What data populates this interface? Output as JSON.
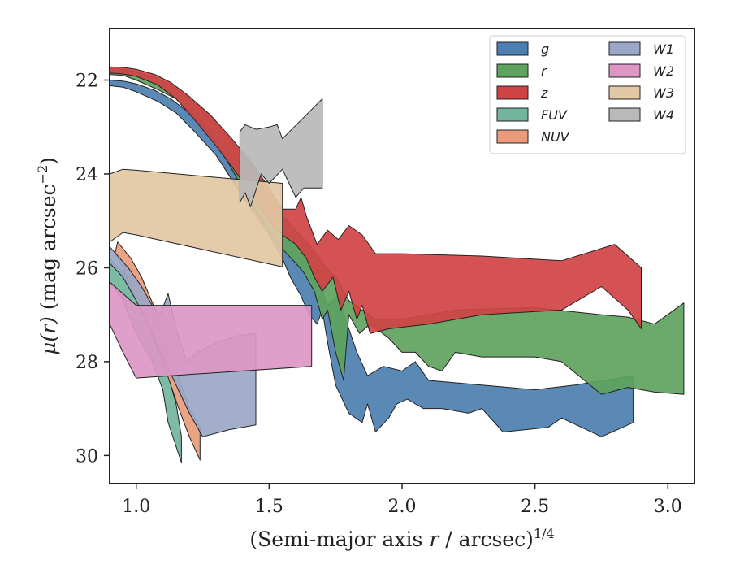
{
  "chart_data": {
    "type": "area",
    "xlabel": "(Semi-major axis r / arcsec)^1/4",
    "xlabel_parts": {
      "prefix": "(Semi-major axis ",
      "var": "r",
      "mid": " / arcsec)",
      "sup": "1/4"
    },
    "ylabel": "μ(r) (mag arcsec^−2)",
    "ylabel_parts": {
      "var": "μ(r)",
      "mid": " (mag arcsec",
      "sup": "−2",
      "end": ")"
    },
    "xlim": [
      0.9,
      3.1
    ],
    "ylim": [
      30.6,
      20.9
    ],
    "y_inverted": true,
    "xticks": [
      1.0,
      1.5,
      2.0,
      2.5,
      3.0
    ],
    "xtick_labels": [
      "1.0",
      "1.5",
      "2.0",
      "2.5",
      "3.0"
    ],
    "yticks": [
      22,
      24,
      26,
      28,
      30
    ],
    "ytick_labels": [
      "22",
      "24",
      "26",
      "28",
      "30"
    ],
    "grid": false,
    "legend_position": "top-right",
    "legend_columns": 2,
    "series": [
      {
        "name": "g",
        "color": "#4c7fb0",
        "polygon": [
          [
            0.9,
            22.0
          ],
          [
            0.95,
            22.02
          ],
          [
            1.0,
            22.08
          ],
          [
            1.07,
            22.22
          ],
          [
            1.13,
            22.4
          ],
          [
            1.2,
            22.7
          ],
          [
            1.28,
            23.1
          ],
          [
            1.36,
            23.6
          ],
          [
            1.44,
            24.1
          ],
          [
            1.5,
            24.6
          ],
          [
            1.55,
            25.1
          ],
          [
            1.6,
            25.5
          ],
          [
            1.64,
            25.8
          ],
          [
            1.68,
            26.2
          ],
          [
            1.72,
            26.8
          ],
          [
            1.76,
            26.6
          ],
          [
            1.8,
            27.3
          ],
          [
            1.83,
            27.8
          ],
          [
            1.87,
            28.3
          ],
          [
            1.93,
            28.1
          ],
          [
            2.0,
            28.2
          ],
          [
            2.05,
            28.0
          ],
          [
            2.1,
            28.4
          ],
          [
            2.3,
            28.5
          ],
          [
            2.5,
            28.6
          ],
          [
            2.65,
            28.5
          ],
          [
            2.87,
            28.3
          ],
          [
            2.87,
            29.3
          ],
          [
            2.75,
            29.6
          ],
          [
            2.6,
            29.2
          ],
          [
            2.55,
            29.4
          ],
          [
            2.38,
            29.5
          ],
          [
            2.3,
            29.0
          ],
          [
            2.25,
            29.1
          ],
          [
            2.15,
            29.0
          ],
          [
            2.08,
            29.0
          ],
          [
            2.02,
            28.8
          ],
          [
            1.98,
            28.9
          ],
          [
            1.95,
            29.2
          ],
          [
            1.9,
            29.5
          ],
          [
            1.87,
            28.9
          ],
          [
            1.85,
            29.3
          ],
          [
            1.8,
            29.1
          ],
          [
            1.75,
            28.5
          ],
          [
            1.72,
            27.6
          ],
          [
            1.7,
            26.9
          ],
          [
            1.68,
            27.2
          ],
          [
            1.65,
            27.0
          ],
          [
            1.62,
            26.6
          ],
          [
            1.58,
            26.2
          ],
          [
            1.55,
            25.8
          ],
          [
            1.5,
            25.3
          ],
          [
            1.44,
            24.8
          ],
          [
            1.38,
            24.3
          ],
          [
            1.3,
            23.6
          ],
          [
            1.22,
            23.1
          ],
          [
            1.15,
            22.7
          ],
          [
            1.08,
            22.45
          ],
          [
            1.0,
            22.25
          ],
          [
            0.95,
            22.15
          ],
          [
            0.9,
            22.12
          ]
        ]
      },
      {
        "name": "r",
        "color": "#5ea35e",
        "polygon": [
          [
            0.9,
            21.75
          ],
          [
            0.95,
            21.77
          ],
          [
            1.0,
            21.82
          ],
          [
            1.07,
            21.95
          ],
          [
            1.13,
            22.1
          ],
          [
            1.2,
            22.4
          ],
          [
            1.28,
            22.8
          ],
          [
            1.36,
            23.3
          ],
          [
            1.44,
            23.9
          ],
          [
            1.5,
            24.4
          ],
          [
            1.55,
            24.9
          ],
          [
            1.6,
            25.2
          ],
          [
            1.65,
            25.5
          ],
          [
            1.7,
            25.9
          ],
          [
            1.75,
            26.2
          ],
          [
            1.8,
            26.7
          ],
          [
            1.85,
            26.9
          ],
          [
            1.9,
            27.1
          ],
          [
            2.0,
            27.1
          ],
          [
            2.2,
            26.9
          ],
          [
            2.5,
            26.85
          ],
          [
            2.75,
            27.0
          ],
          [
            2.85,
            27.05
          ],
          [
            2.95,
            27.2
          ],
          [
            3.06,
            26.75
          ],
          [
            3.06,
            28.7
          ],
          [
            2.95,
            28.65
          ],
          [
            2.85,
            28.55
          ],
          [
            2.75,
            28.7
          ],
          [
            2.6,
            28.0
          ],
          [
            2.5,
            27.9
          ],
          [
            2.3,
            27.9
          ],
          [
            2.2,
            27.8
          ],
          [
            2.15,
            28.2
          ],
          [
            2.1,
            28.1
          ],
          [
            2.05,
            27.8
          ],
          [
            2.0,
            27.8
          ],
          [
            1.95,
            27.5
          ],
          [
            1.88,
            27.2
          ],
          [
            1.84,
            27.4
          ],
          [
            1.8,
            27.0
          ],
          [
            1.78,
            28.4
          ],
          [
            1.75,
            27.8
          ],
          [
            1.72,
            26.9
          ],
          [
            1.7,
            27.1
          ],
          [
            1.67,
            26.5
          ],
          [
            1.63,
            26.1
          ],
          [
            1.6,
            25.9
          ],
          [
            1.55,
            25.6
          ],
          [
            1.5,
            25.2
          ],
          [
            1.44,
            24.7
          ],
          [
            1.38,
            24.1
          ],
          [
            1.3,
            23.3
          ],
          [
            1.22,
            22.8
          ],
          [
            1.15,
            22.4
          ],
          [
            1.08,
            22.2
          ],
          [
            1.0,
            22.0
          ],
          [
            0.95,
            21.9
          ],
          [
            0.9,
            21.88
          ]
        ]
      },
      {
        "name": "z",
        "color": "#d04345",
        "polygon": [
          [
            0.9,
            21.72
          ],
          [
            0.95,
            21.73
          ],
          [
            1.0,
            21.77
          ],
          [
            1.07,
            21.88
          ],
          [
            1.13,
            22.05
          ],
          [
            1.2,
            22.35
          ],
          [
            1.28,
            22.75
          ],
          [
            1.36,
            23.25
          ],
          [
            1.44,
            23.8
          ],
          [
            1.5,
            24.3
          ],
          [
            1.55,
            24.75
          ],
          [
            1.6,
            24.75
          ],
          [
            1.62,
            24.5
          ],
          [
            1.64,
            24.9
          ],
          [
            1.68,
            25.5
          ],
          [
            1.72,
            25.2
          ],
          [
            1.76,
            25.4
          ],
          [
            1.8,
            25.1
          ],
          [
            1.85,
            25.3
          ],
          [
            1.9,
            25.7
          ],
          [
            2.0,
            25.7
          ],
          [
            2.3,
            25.75
          ],
          [
            2.6,
            25.85
          ],
          [
            2.8,
            25.5
          ],
          [
            2.9,
            26.0
          ],
          [
            2.9,
            27.3
          ],
          [
            2.85,
            26.9
          ],
          [
            2.75,
            26.4
          ],
          [
            2.6,
            26.9
          ],
          [
            2.3,
            27.0
          ],
          [
            2.1,
            27.2
          ],
          [
            1.95,
            27.3
          ],
          [
            1.88,
            27.4
          ],
          [
            1.85,
            26.8
          ],
          [
            1.83,
            27.1
          ],
          [
            1.8,
            26.5
          ],
          [
            1.77,
            26.9
          ],
          [
            1.74,
            26.2
          ],
          [
            1.7,
            26.5
          ],
          [
            1.67,
            26.2
          ],
          [
            1.64,
            25.8
          ],
          [
            1.6,
            25.5
          ],
          [
            1.55,
            25.3
          ],
          [
            1.5,
            25.0
          ],
          [
            1.44,
            24.5
          ],
          [
            1.38,
            24.0
          ],
          [
            1.3,
            23.4
          ],
          [
            1.22,
            22.85
          ],
          [
            1.15,
            22.4
          ],
          [
            1.08,
            22.1
          ],
          [
            1.0,
            21.92
          ],
          [
            0.95,
            21.87
          ],
          [
            0.9,
            21.85
          ]
        ]
      },
      {
        "name": "FUV",
        "color": "#72b59c",
        "polygon": [
          [
            0.9,
            25.8
          ],
          [
            0.95,
            26.1
          ],
          [
            1.0,
            26.5
          ],
          [
            1.05,
            27.2
          ],
          [
            1.1,
            27.9
          ],
          [
            1.13,
            28.5
          ],
          [
            1.15,
            28.9
          ],
          [
            1.17,
            29.6
          ],
          [
            1.17,
            30.15
          ],
          [
            1.12,
            29.3
          ],
          [
            1.1,
            28.6
          ],
          [
            1.06,
            28.0
          ],
          [
            1.0,
            27.4
          ],
          [
            0.95,
            26.7
          ],
          [
            0.9,
            26.3
          ]
        ]
      },
      {
        "name": "NUV",
        "color": "#e99b7c",
        "polygon": [
          [
            0.93,
            25.45
          ],
          [
            0.98,
            25.8
          ],
          [
            1.02,
            26.2
          ],
          [
            1.08,
            27.0
          ],
          [
            1.13,
            27.9
          ],
          [
            1.17,
            28.5
          ],
          [
            1.2,
            29.0
          ],
          [
            1.24,
            29.4
          ],
          [
            1.24,
            30.1
          ],
          [
            1.2,
            29.6
          ],
          [
            1.16,
            29.0
          ],
          [
            1.1,
            28.0
          ],
          [
            1.05,
            27.3
          ],
          [
            1.0,
            26.7
          ],
          [
            0.95,
            26.0
          ],
          [
            0.92,
            25.7
          ]
        ]
      },
      {
        "name": "W1",
        "color": "#9ba7c7",
        "polygon": [
          [
            0.9,
            25.55
          ],
          [
            0.97,
            26.0
          ],
          [
            1.02,
            26.4
          ],
          [
            1.06,
            26.8
          ],
          [
            1.09,
            27.0
          ],
          [
            1.12,
            26.55
          ],
          [
            1.15,
            27.3
          ],
          [
            1.19,
            28.0
          ],
          [
            1.23,
            27.8
          ],
          [
            1.3,
            27.6
          ],
          [
            1.38,
            27.45
          ],
          [
            1.45,
            27.4
          ],
          [
            1.45,
            29.35
          ],
          [
            1.35,
            29.45
          ],
          [
            1.25,
            29.6
          ],
          [
            1.2,
            29.1
          ],
          [
            1.15,
            28.5
          ],
          [
            1.1,
            27.9
          ],
          [
            1.05,
            27.3
          ],
          [
            1.0,
            26.7
          ],
          [
            0.95,
            26.2
          ],
          [
            0.9,
            25.9
          ]
        ]
      },
      {
        "name": "W2",
        "color": "#dc97c5",
        "polygon": [
          [
            0.9,
            26.3
          ],
          [
            0.95,
            26.55
          ],
          [
            1.0,
            26.8
          ],
          [
            1.66,
            26.8
          ],
          [
            1.66,
            28.1
          ],
          [
            1.0,
            28.35
          ],
          [
            0.95,
            27.8
          ],
          [
            0.9,
            27.2
          ]
        ]
      },
      {
        "name": "W3",
        "color": "#e2c8a4",
        "polygon": [
          [
            0.9,
            24.0
          ],
          [
            0.95,
            23.9
          ],
          [
            1.0,
            23.92
          ],
          [
            1.55,
            24.2
          ],
          [
            1.55,
            25.98
          ],
          [
            1.0,
            25.3
          ],
          [
            0.95,
            25.25
          ],
          [
            0.9,
            25.45
          ]
        ]
      },
      {
        "name": "W4",
        "color": "#b9b9b9",
        "polygon": [
          [
            1.39,
            23.1
          ],
          [
            1.41,
            22.95
          ],
          [
            1.45,
            23.05
          ],
          [
            1.5,
            23.0
          ],
          [
            1.53,
            22.95
          ],
          [
            1.55,
            23.25
          ],
          [
            1.7,
            22.4
          ],
          [
            1.7,
            24.3
          ],
          [
            1.63,
            24.3
          ],
          [
            1.6,
            24.5
          ],
          [
            1.55,
            23.9
          ],
          [
            1.5,
            24.2
          ],
          [
            1.47,
            24.0
          ],
          [
            1.43,
            24.7
          ],
          [
            1.41,
            24.4
          ],
          [
            1.39,
            24.6
          ]
        ]
      }
    ]
  }
}
